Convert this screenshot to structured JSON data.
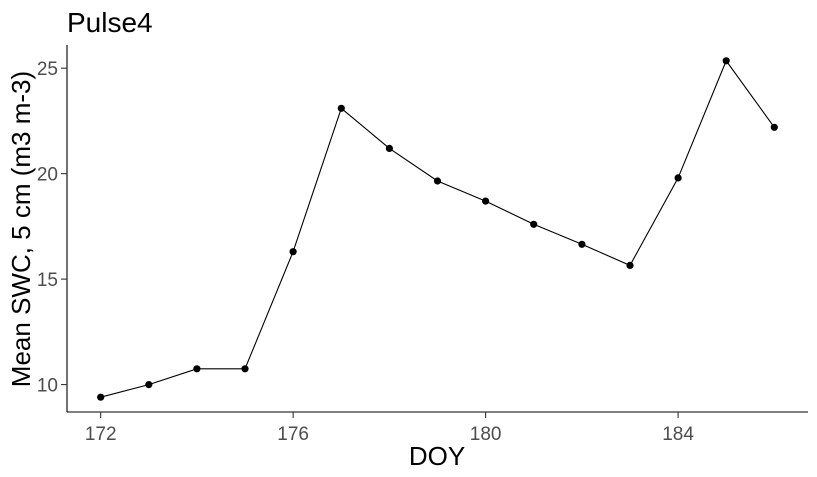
{
  "chart_data": {
    "type": "line",
    "title": "Pulse4",
    "xlabel": "DOY",
    "ylabel": "Mean SWC, 5 cm (m3 m-3)",
    "xlim": [
      171.3,
      186.7
    ],
    "ylim": [
      8.7,
      26.1
    ],
    "x_ticks": [
      172,
      176,
      180,
      184
    ],
    "y_ticks": [
      10,
      15,
      20,
      25
    ],
    "grid": false,
    "legend": "none",
    "x": [
      172,
      173,
      174,
      175,
      176,
      177,
      178,
      179,
      180,
      181,
      182,
      183,
      184,
      185,
      186
    ],
    "y": [
      9.4,
      10.0,
      10.75,
      10.75,
      16.3,
      23.1,
      21.2,
      19.65,
      18.7,
      17.6,
      16.65,
      15.65,
      19.8,
      25.35,
      22.2
    ],
    "colors": {
      "line": "#000000",
      "points": "#000000",
      "tick_labels": "#4d4d4d"
    }
  }
}
